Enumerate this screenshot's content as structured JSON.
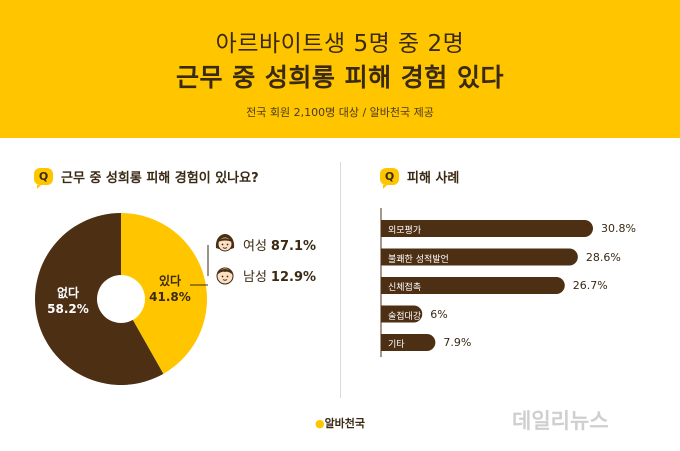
{
  "header": {
    "title_line1": "아르바이트생 5명 중 2명",
    "title_line2": "근무 중 성희롱 피해 경험 있다",
    "subtitle": "전국 회원 2,100명 대상 / 알바천국 제공"
  },
  "left_section": {
    "q_badge": "Q",
    "question": "근무 중 성희롱 피해 경험이 있나요?"
  },
  "right_section": {
    "q_badge": "Q",
    "question": "피해 사례"
  },
  "colors": {
    "brand_yellow": "#ffc600",
    "dark_brown": "#4d2f14",
    "text_brown": "#3a2a14"
  },
  "chart_data": [
    {
      "type": "pie",
      "slices": [
        {
          "name": "있다",
          "value": 41.8,
          "label": "있다",
          "value_label": "41.8%",
          "color": "#ffc600"
        },
        {
          "name": "없다",
          "value": 58.2,
          "label": "없다",
          "value_label": "58.2%",
          "color": "#4d2f14"
        }
      ],
      "breakdown": [
        {
          "name": "여성",
          "value": 87.1,
          "value_label": "87.1%",
          "icon": "woman-face-icon"
        },
        {
          "name": "남성",
          "value": 12.9,
          "value_label": "12.9%",
          "icon": "man-face-icon"
        }
      ]
    },
    {
      "type": "bar",
      "orientation": "horizontal",
      "categories": [
        "외모평가",
        "불쾌한 성적발언",
        "신체접촉",
        "술접대강요",
        "기타"
      ],
      "values": [
        30.8,
        28.6,
        26.7,
        6,
        7.9
      ],
      "value_labels": [
        "30.8%",
        "28.6%",
        "26.7%",
        "6%",
        "7.9%"
      ]
    }
  ],
  "footer": {
    "logo_mark": "●",
    "logo_text": "알바천국",
    "watermark": "데일리뉴스"
  }
}
